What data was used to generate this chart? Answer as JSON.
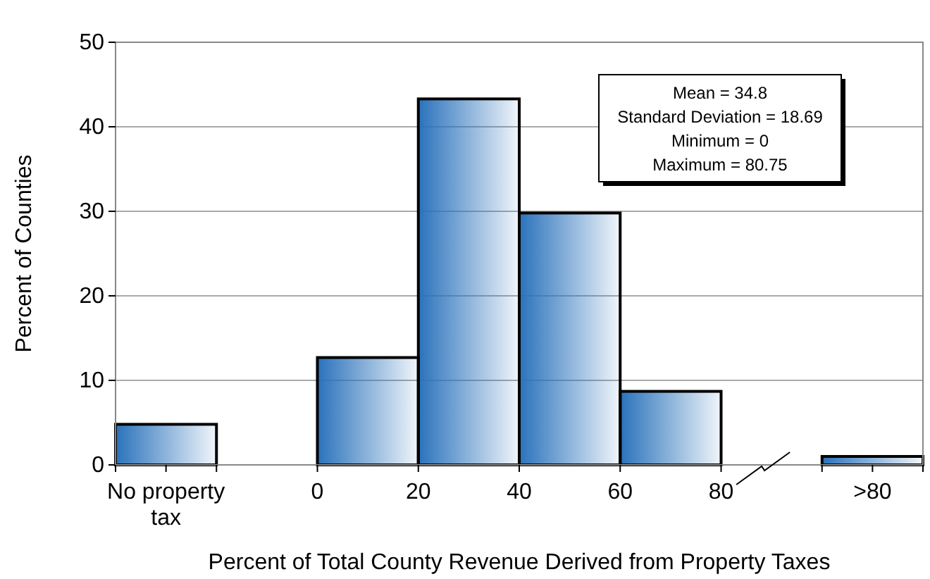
{
  "chart_data": {
    "type": "histogram",
    "xlabel": "Percent of Total County Revenue Derived from Property Taxes",
    "ylabel": "Percent of Counties",
    "bins": [
      -40,
      -20,
      0,
      20,
      40,
      60,
      80,
      100,
      120
    ],
    "values": [
      4.8,
      null,
      12.7,
      43.3,
      29.8,
      8.7,
      null,
      1.0
    ],
    "color": "#2a72bb",
    "xlim": [
      -40,
      120
    ],
    "xticks": [
      {
        "value": -40,
        "label": null
      },
      {
        "value": -30,
        "label": "No property tax"
      },
      {
        "value": -20,
        "label": null
      },
      0,
      20,
      40,
      60,
      80,
      {
        "value": 100,
        "label": null
      },
      {
        "value": 110,
        "label": ">80"
      },
      {
        "value": 120,
        "label": null
      }
    ],
    "ylim": [
      0,
      50
    ],
    "yticks": [
      0,
      10,
      20,
      30,
      40,
      50
    ],
    "grid": "y",
    "annotations": [
      "Mean = 34.8",
      "Standard Deviation = 18.69",
      "Minimum = 0",
      "Maximum = 80.75"
    ]
  }
}
